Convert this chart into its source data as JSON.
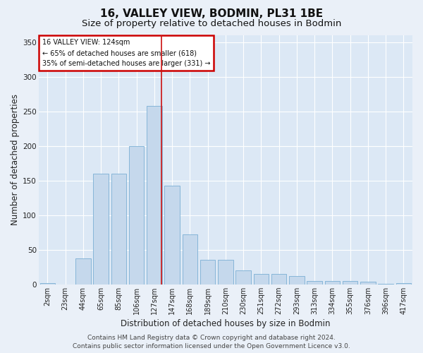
{
  "title": "16, VALLEY VIEW, BODMIN, PL31 1BE",
  "subtitle": "Size of property relative to detached houses in Bodmin",
  "xlabel": "Distribution of detached houses by size in Bodmin",
  "ylabel": "Number of detached properties",
  "categories": [
    "2sqm",
    "23sqm",
    "44sqm",
    "65sqm",
    "85sqm",
    "106sqm",
    "127sqm",
    "147sqm",
    "168sqm",
    "189sqm",
    "210sqm",
    "230sqm",
    "251sqm",
    "272sqm",
    "293sqm",
    "313sqm",
    "334sqm",
    "355sqm",
    "376sqm",
    "396sqm",
    "417sqm"
  ],
  "bar_heights": [
    2,
    0,
    38,
    160,
    160,
    200,
    258,
    143,
    72,
    35,
    35,
    20,
    15,
    15,
    12,
    5,
    5,
    5,
    4,
    1,
    2
  ],
  "bar_color": "#c5d8ec",
  "bar_edge_color": "#7aafd4",
  "property_line_x": 6.42,
  "property_line_color": "#cc1111",
  "annotation_line1": "16 VALLEY VIEW: 124sqm",
  "annotation_line2": "← 65% of detached houses are smaller (618)",
  "annotation_line3": "35% of semi-detached houses are larger (331) →",
  "ann_box_fc": "#ffffff",
  "ann_box_ec": "#cc0000",
  "ylim_max": 360,
  "yticks": [
    0,
    50,
    100,
    150,
    200,
    250,
    300,
    350
  ],
  "plot_bg": "#dce8f5",
  "fig_bg": "#eaf0f8",
  "grid_color": "#ffffff",
  "title_fs": 11,
  "subtitle_fs": 9.5,
  "tick_fs": 7,
  "axis_label_fs": 8.5,
  "ann_fs": 7.0,
  "footer_fs": 6.5,
  "footer_line1": "Contains HM Land Registry data © Crown copyright and database right 2024.",
  "footer_line2": "Contains public sector information licensed under the Open Government Licence v3.0."
}
